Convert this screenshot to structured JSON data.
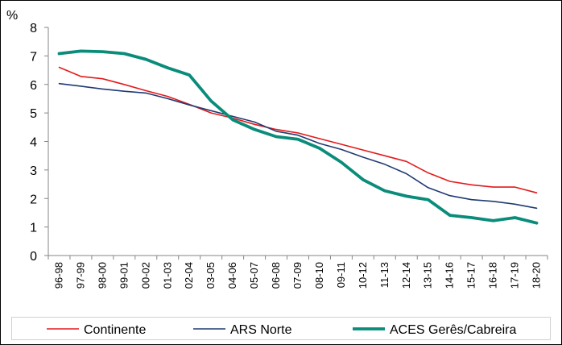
{
  "chart_data": {
    "type": "line",
    "ylabel": "%",
    "ylim": [
      0,
      8
    ],
    "yticks": [
      0,
      1,
      2,
      3,
      4,
      5,
      6,
      7,
      8
    ],
    "grid": false,
    "legend_position": "bottom",
    "categories": [
      "96-98",
      "97-99",
      "98-00",
      "99-01",
      "00-02",
      "01-03",
      "02-04",
      "03-05",
      "04-06",
      "05-07",
      "06-08",
      "07-09",
      "08-10",
      "09-11",
      "10-12",
      "11-13",
      "12-14",
      "13-15",
      "14-16",
      "15-17",
      "16-18",
      "17-19",
      "18-20"
    ],
    "series": [
      {
        "name": "Continente",
        "color": "#e31a1c",
        "values": [
          6.6,
          6.28,
          6.2,
          6.0,
          5.78,
          5.58,
          5.3,
          5.0,
          4.82,
          4.6,
          4.42,
          4.3,
          4.1,
          3.9,
          3.7,
          3.5,
          3.3,
          2.9,
          2.6,
          2.48,
          2.4,
          2.4,
          2.2
        ]
      },
      {
        "name": "ARS Norte",
        "color": "#1f3a73",
        "values": [
          6.03,
          5.94,
          5.84,
          5.76,
          5.7,
          5.5,
          5.28,
          5.08,
          4.88,
          4.68,
          4.36,
          4.22,
          3.93,
          3.72,
          3.45,
          3.2,
          2.87,
          2.38,
          2.1,
          1.96,
          1.9,
          1.8,
          1.66
        ]
      },
      {
        "name": "ACES Gerês/Cabreira",
        "color": "#0a8c7a",
        "values": [
          7.08,
          7.17,
          7.15,
          7.08,
          6.88,
          6.58,
          6.33,
          5.42,
          4.76,
          4.42,
          4.17,
          4.08,
          3.76,
          3.27,
          2.66,
          2.27,
          2.08,
          1.96,
          1.41,
          1.33,
          1.22,
          1.33,
          1.14
        ]
      }
    ]
  }
}
